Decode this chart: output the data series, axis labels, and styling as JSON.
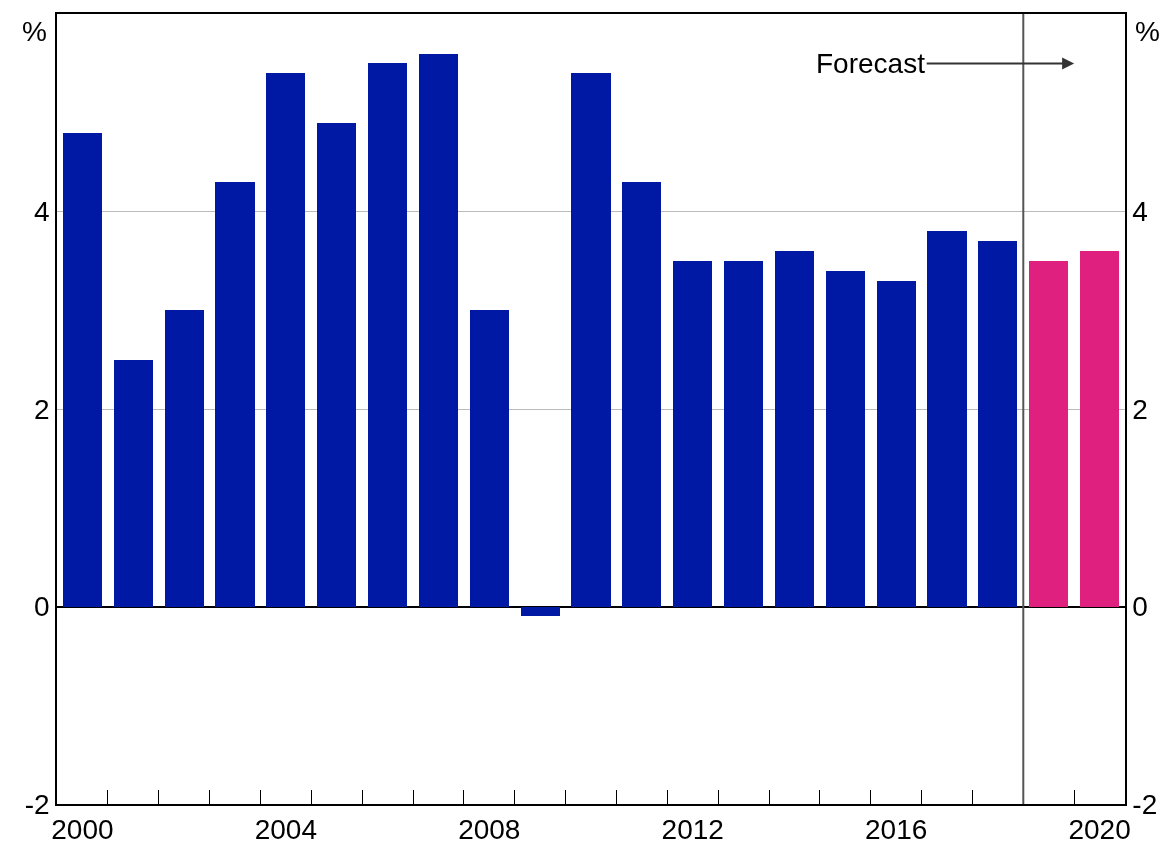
{
  "chart_data": {
    "type": "bar",
    "x": [
      2000,
      2001,
      2002,
      2003,
      2004,
      2005,
      2006,
      2007,
      2008,
      2009,
      2010,
      2011,
      2012,
      2013,
      2014,
      2015,
      2016,
      2017,
      2018,
      2019,
      2020
    ],
    "values": [
      4.8,
      2.5,
      3.0,
      4.3,
      5.4,
      4.9,
      5.5,
      5.6,
      3.0,
      -0.1,
      5.4,
      4.3,
      3.5,
      3.5,
      3.6,
      3.4,
      3.3,
      3.8,
      3.7,
      3.5,
      3.6
    ],
    "colors": [
      "#0019a5",
      "#0019a5",
      "#0019a5",
      "#0019a5",
      "#0019a5",
      "#0019a5",
      "#0019a5",
      "#0019a5",
      "#0019a5",
      "#0019a5",
      "#0019a5",
      "#0019a5",
      "#0019a5",
      "#0019a5",
      "#0019a5",
      "#0019a5",
      "#0019a5",
      "#0019a5",
      "#0019a5",
      "#e0207f",
      "#e0207f"
    ],
    "xlim": [
      1999.5,
      2020.5
    ],
    "xticks": [
      2000,
      {
        "value": 2000.5,
        "label": null
      },
      {
        "value": 2001.5,
        "label": null
      },
      {
        "value": 2002.5,
        "label": null
      },
      {
        "value": 2003.5,
        "label": null
      },
      2004,
      {
        "value": 2004.5,
        "label": null
      },
      {
        "value": 2005.5,
        "label": null
      },
      {
        "value": 2006.5,
        "label": null
      },
      {
        "value": 2007.5,
        "label": null
      },
      2008,
      {
        "value": 2008.5,
        "label": null
      },
      {
        "value": 2009.5,
        "label": null
      },
      {
        "value": 2010.5,
        "label": null
      },
      {
        "value": 2011.5,
        "label": null
      },
      2012,
      {
        "value": 2012.5,
        "label": null
      },
      {
        "value": 2013.5,
        "label": null
      },
      {
        "value": 2014.5,
        "label": null
      },
      {
        "value": 2015.5,
        "label": null
      },
      2016,
      {
        "value": 2016.5,
        "label": null
      },
      {
        "value": 2017.5,
        "label": null
      },
      {
        "value": 2018.5,
        "label": null
      },
      {
        "value": 2019.5,
        "label": null
      },
      2020
    ],
    "ylim": [
      -2,
      6
    ],
    "yticks": [
      -2,
      0,
      2,
      4
    ],
    "y2lim": [
      -2,
      6
    ],
    "y2ticks": [
      -2,
      0,
      2,
      4
    ],
    "ylabel": "%",
    "y2label": "%",
    "grid": "y",
    "ref_lines": [
      {
        "axis": "x",
        "value": 2018.5,
        "color": "#555555"
      }
    ],
    "annotations": [
      "Forecast"
    ]
  }
}
